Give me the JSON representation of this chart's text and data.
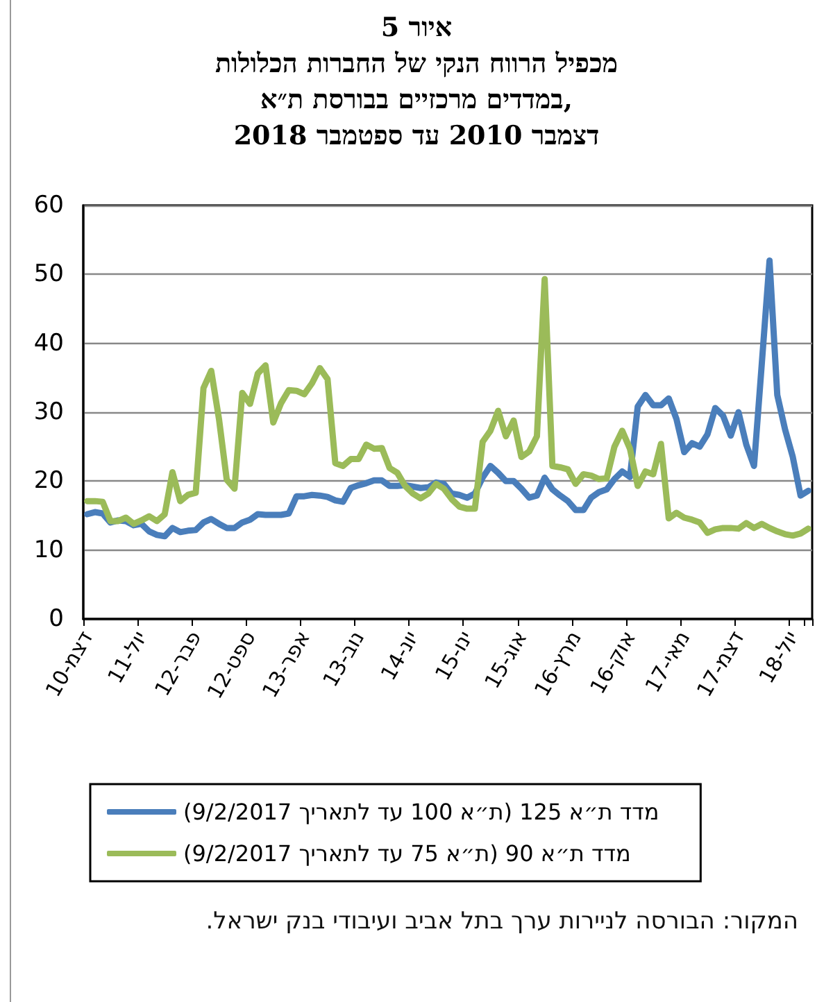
{
  "chart_data": {
    "type": "line",
    "title": "איור 5\nמכפיל הרווח הנקי של החברות הכלולות\nבמדדים מרכזיים בבורסת ת״א,\nדצמבר 2010 עד ספטמבר 2018",
    "categories": [
      "דצמ-10",
      null,
      null,
      null,
      null,
      null,
      null,
      "יול-11",
      null,
      null,
      null,
      null,
      null,
      null,
      "פבר-12",
      null,
      null,
      null,
      null,
      null,
      null,
      "ספט-12",
      null,
      null,
      null,
      null,
      null,
      null,
      "אפר-13",
      null,
      null,
      null,
      null,
      null,
      null,
      "נוב-13",
      null,
      null,
      null,
      null,
      null,
      null,
      "יונ-14",
      null,
      null,
      null,
      null,
      null,
      null,
      "ינו-15",
      null,
      null,
      null,
      null,
      null,
      null,
      "אוג-15",
      null,
      null,
      null,
      null,
      null,
      null,
      "מרץ-16",
      null,
      null,
      null,
      null,
      null,
      null,
      "אוק-16",
      null,
      null,
      null,
      null,
      null,
      null,
      "מאי-17",
      null,
      null,
      null,
      null,
      null,
      null,
      "דצמ-17",
      null,
      null,
      null,
      null,
      null,
      null,
      "יול-18",
      null,
      null
    ],
    "series": [
      {
        "name": "מדד ת״א 125 (ת״א 100 עד לתאריך 9/2/2017)",
        "color": "#4a7ebb",
        "values": [
          15.2,
          15.5,
          15.3,
          14,
          14.3,
          14.2,
          13.6,
          13.8,
          12.7,
          12.2,
          12,
          13.2,
          12.6,
          12.8,
          12.9,
          14,
          14.5,
          13.8,
          13.2,
          13.2,
          14,
          14.4,
          15.2,
          15.1,
          15.1,
          15.1,
          15.3,
          17.8,
          17.8,
          18,
          17.9,
          17.7,
          17.2,
          17,
          19,
          19.4,
          19.7,
          20.1,
          20.1,
          19.3,
          19.3,
          19.4,
          19.2,
          19,
          19.1,
          19.8,
          19.6,
          18.2,
          18,
          17.6,
          18.2,
          20.5,
          22.2,
          21.2,
          20,
          20,
          18.9,
          17.6,
          17.9,
          20.5,
          18.8,
          17.9,
          17.1,
          15.8,
          15.8,
          17.6,
          18.4,
          18.8,
          20.3,
          21.4,
          20.6,
          30.8,
          32.5,
          31,
          31,
          32,
          29,
          24.2,
          25.5,
          25,
          26.8,
          30.6,
          29.5,
          26.6,
          30,
          25.3,
          22.2,
          37,
          52,
          32.5,
          27.5,
          23.5,
          17.9,
          18.6
        ]
      },
      {
        "name": "מדד ת״א 90 (ת״א 75 עד לתאריך 9/2/2017)",
        "color": "#9bbb59",
        "values": [
          17.1,
          17.1,
          17,
          14.2,
          14.2,
          14.7,
          13.8,
          14.3,
          14.9,
          14.2,
          15.2,
          21.3,
          17.1,
          18,
          18.3,
          33.5,
          36,
          29,
          20.2,
          18.9,
          32.8,
          31.2,
          35.6,
          36.8,
          28.5,
          31.3,
          33.2,
          33.1,
          32.6,
          34.2,
          36.4,
          34.8,
          22.6,
          22.2,
          23.2,
          23.2,
          25.3,
          24.7,
          24.8,
          21.9,
          21.2,
          19.3,
          18.2,
          17.5,
          18.2,
          19.6,
          18.9,
          17.4,
          16.3,
          16,
          16,
          25.7,
          27.3,
          30.2,
          26.5,
          28.8,
          23.5,
          24.3,
          26.5,
          49.3,
          22.2,
          22,
          21.7,
          19.6,
          21,
          20.8,
          20.3,
          20.4,
          25,
          27.3,
          24.7,
          19.3,
          21.4,
          21,
          25.4,
          14.6,
          15.4,
          14.7,
          14.4,
          14,
          12.5,
          13,
          13.2,
          13.2,
          13.1,
          13.9,
          13.2,
          13.8,
          13.2,
          12.7,
          12.3,
          12.1,
          12.4,
          13.1
        ]
      }
    ],
    "ylim": [
      0,
      60
    ],
    "yticks": [
      0,
      10,
      20,
      30,
      40,
      50,
      60
    ],
    "grid": "y",
    "legend": "bottom",
    "marker": "none",
    "line_style": "solid",
    "annotations": [
      "המקור: הבורסה לניירות ערך בתל אביב ועיבודי בנק ישראל."
    ]
  }
}
